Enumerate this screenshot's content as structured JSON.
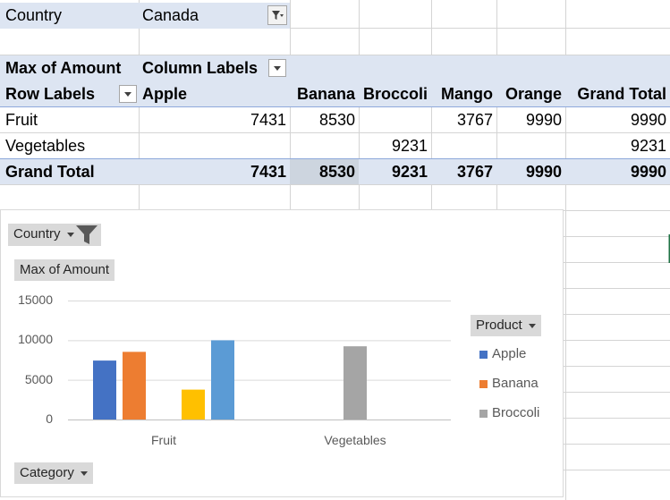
{
  "report_filter": {
    "label": "Country",
    "value": "Canada"
  },
  "pivot": {
    "value_header": "Max of Amount",
    "column_labels": "Column Labels",
    "row_labels": "Row Labels",
    "columns": [
      "Apple",
      "Banana",
      "Broccoli",
      "Mango",
      "Orange",
      "Grand Total"
    ],
    "rows": [
      {
        "label": "Fruit",
        "values": [
          "7431",
          "8530",
          "",
          "3767",
          "9990",
          "9990"
        ]
      },
      {
        "label": "Vegetables",
        "values": [
          "",
          "",
          "9231",
          "",
          "",
          "9231"
        ]
      }
    ],
    "grand_total": {
      "label": "Grand Total",
      "values": [
        "7431",
        "8530",
        "9231",
        "3767",
        "9990",
        "9990"
      ]
    }
  },
  "chart_buttons": {
    "country": "Country",
    "value": "Max of Amount",
    "product": "Product",
    "category": "Category"
  },
  "chart_data": {
    "type": "bar",
    "categories": [
      "Fruit",
      "Vegetables"
    ],
    "ylim": [
      0,
      15000
    ],
    "yticks": [
      "15000",
      "10000",
      "5000",
      "0"
    ],
    "series": [
      {
        "name": "Apple",
        "color": "#4472c4",
        "values": [
          7431,
          null
        ]
      },
      {
        "name": "Banana",
        "color": "#ed7d31",
        "values": [
          8530,
          null
        ]
      },
      {
        "name": "Broccoli",
        "color": "#a5a5a5",
        "values": [
          null,
          9231
        ]
      },
      {
        "name": "Mango",
        "color": "#ffc000",
        "values": [
          3767,
          null
        ]
      },
      {
        "name": "Orange",
        "color": "#5b9bd5",
        "values": [
          9990,
          null
        ]
      }
    ],
    "legend": [
      "Apple",
      "Banana",
      "Broccoli"
    ]
  }
}
